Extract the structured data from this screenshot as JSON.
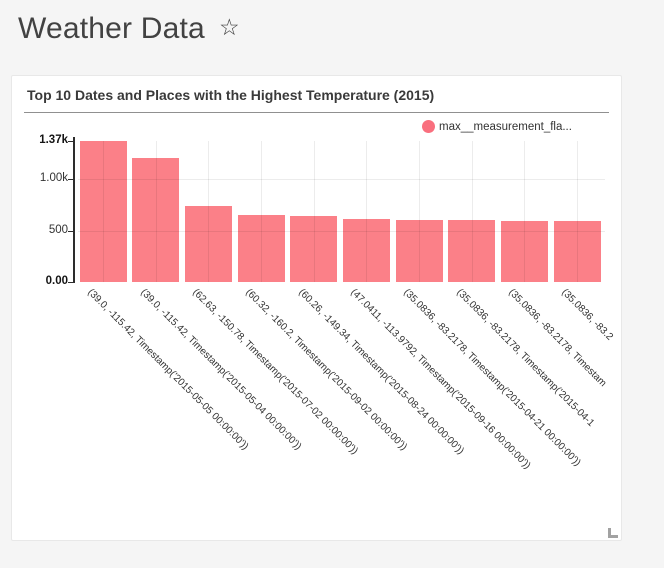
{
  "page": {
    "title": "Weather Data"
  },
  "icons": {
    "favorite_glyph": "☆"
  },
  "chart_data": {
    "type": "bar",
    "title": "Top 10 Dates and Places with the Highest Temperature (2015)",
    "series_name": "max__measurement_fla...",
    "bar_color": "#FB8088",
    "legend_dot_color": "#F96F7E",
    "legend_position": "top-right",
    "grid": true,
    "x_tick_rotation_deg": 45,
    "ylim": [
      0,
      1370
    ],
    "yticks": [
      {
        "label": "1.37k",
        "value": 1370,
        "bold": true,
        "grid": false
      },
      {
        "label": "1.00k",
        "value": 1000,
        "bold": false,
        "grid": true
      },
      {
        "label": "500",
        "value": 500,
        "bold": false,
        "grid": true
      },
      {
        "label": "0.00",
        "value": 0,
        "bold": true,
        "grid": false
      }
    ],
    "categories": [
      "(39.0, -115.42, Timestamp('2015-05-05 00:00:00'))",
      "(39.0, -115.42, Timestamp('2015-05-04 00:00:00'))",
      "(62.63, -150.78, Timestamp('2015-07-02 00:00:00'))",
      "(60.32, -160.2, Timestamp('2015-09-02 00:00:00'))",
      "(60.26, -149.34, Timestamp('2015-08-24 00:00:00'))",
      "(47.0411, -113.9792, Timestamp('2015-09-16 00:00:00'))",
      "(35.0836, -83.2178, Timestamp('2015-04-21 00:00:00'))",
      "(35.0836, -83.2178, Timestamp('2015-04-1",
      "(35.0836, -83.2178, Timestam",
      "(35.0836, -83.2"
    ],
    "values": [
      1370,
      1205,
      740,
      655,
      645,
      610,
      600,
      598,
      597,
      596
    ]
  }
}
